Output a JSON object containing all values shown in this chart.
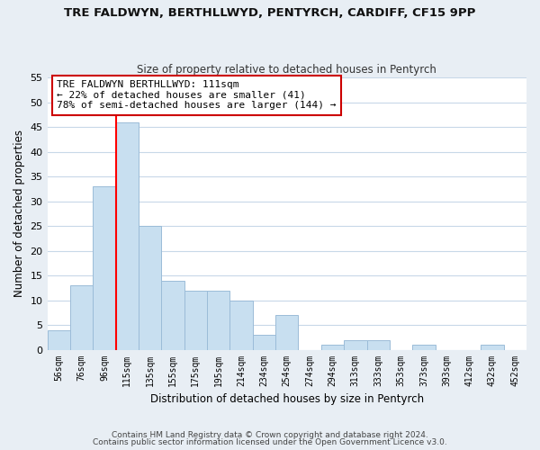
{
  "title": "TRE FALDWYN, BERTHLLWYD, PENTYRCH, CARDIFF, CF15 9PP",
  "subtitle": "Size of property relative to detached houses in Pentyrch",
  "xlabel": "Distribution of detached houses by size in Pentyrch",
  "ylabel": "Number of detached properties",
  "bin_labels": [
    "56sqm",
    "76sqm",
    "96sqm",
    "115sqm",
    "135sqm",
    "155sqm",
    "175sqm",
    "195sqm",
    "214sqm",
    "234sqm",
    "254sqm",
    "274sqm",
    "294sqm",
    "313sqm",
    "333sqm",
    "353sqm",
    "373sqm",
    "393sqm",
    "412sqm",
    "432sqm",
    "452sqm"
  ],
  "bar_heights": [
    4,
    13,
    33,
    46,
    25,
    14,
    12,
    12,
    10,
    3,
    7,
    0,
    1,
    2,
    2,
    0,
    1,
    0,
    0,
    1,
    0
  ],
  "bar_color": "#c8dff0",
  "bar_edge_color": "#9bbcd8",
  "vline_index": 3,
  "vline_color": "red",
  "ylim": [
    0,
    55
  ],
  "yticks": [
    0,
    5,
    10,
    15,
    20,
    25,
    30,
    35,
    40,
    45,
    50,
    55
  ],
  "annotation_title": "TRE FALDWYN BERTHLLWYD: 111sqm",
  "annotation_line1": "← 22% of detached houses are smaller (41)",
  "annotation_line2": "78% of semi-detached houses are larger (144) →",
  "annotation_box_facecolor": "#ffffff",
  "annotation_box_edgecolor": "#cc0000",
  "footer1": "Contains HM Land Registry data © Crown copyright and database right 2024.",
  "footer2": "Contains public sector information licensed under the Open Government Licence v3.0.",
  "fig_facecolor": "#e8eef4",
  "plot_facecolor": "#ffffff",
  "grid_color": "#c8d8e8"
}
